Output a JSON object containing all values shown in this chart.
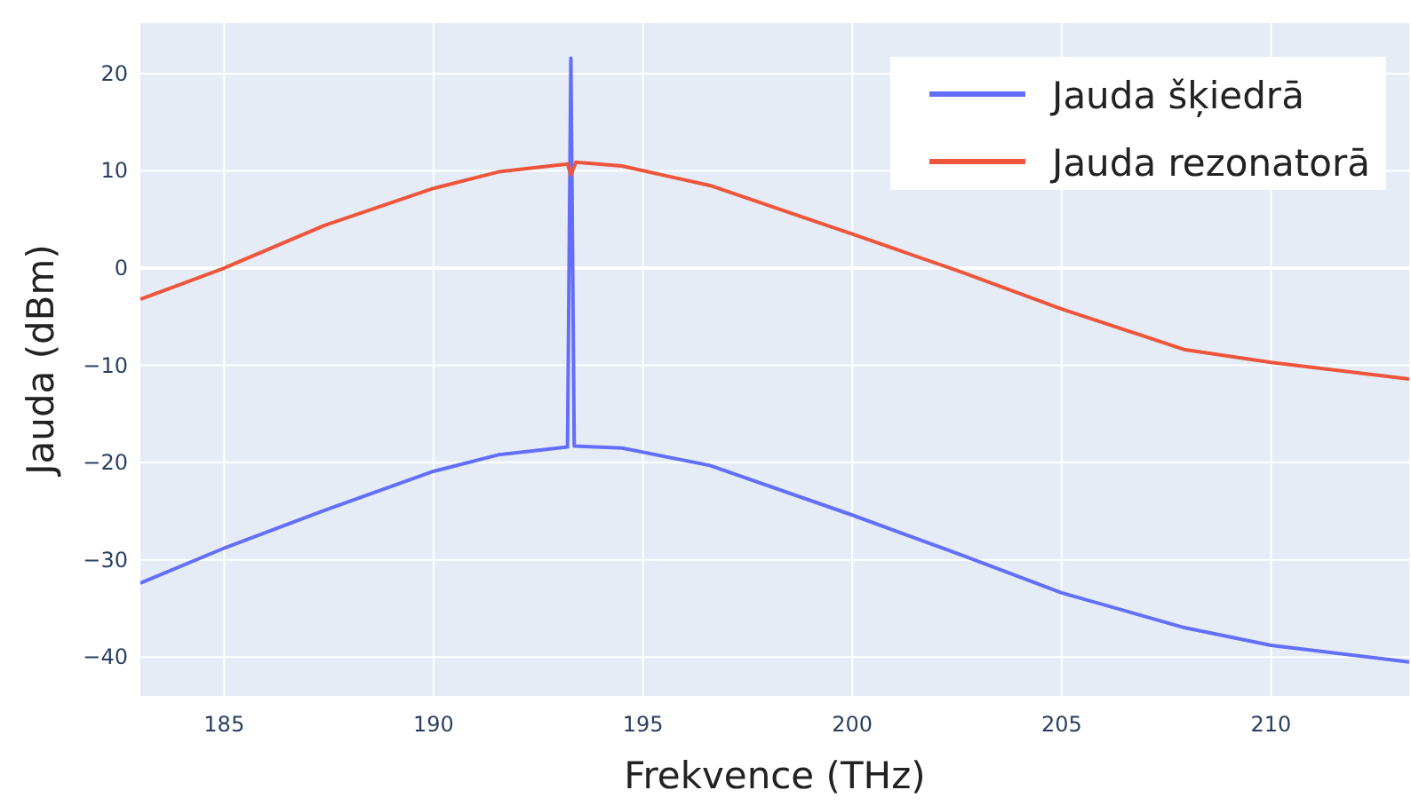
{
  "chart_data": {
    "type": "line",
    "xlabel": "Frekvence (THz)",
    "ylabel": "Jauda (dBm)",
    "xlim": [
      183,
      213.3
    ],
    "ylim": [
      -44,
      25.2
    ],
    "xticks": [
      185,
      190,
      195,
      200,
      205,
      210
    ],
    "yticks": [
      -40,
      -30,
      -20,
      -10,
      0,
      10,
      20
    ],
    "grid": true,
    "legend": "top right",
    "marker": "none",
    "line_style": "solid",
    "series": [
      {
        "name": "Jauda šķiedrā",
        "color": "#636efa",
        "x": [
          183,
          185,
          187.4,
          190,
          191.55,
          193.2,
          193.28,
          193.36,
          194.5,
          196.6,
          200,
          202.6,
          205,
          207.95,
          210,
          213.3
        ],
        "values": [
          -32.4,
          -28.8,
          -24.9,
          -20.9,
          -19.2,
          -18.4,
          21.6,
          -18.3,
          -18.5,
          -20.3,
          -25.4,
          -29.5,
          -33.4,
          -37,
          -38.8,
          -40.5
        ]
      },
      {
        "name": "Jauda rezonatorā",
        "color": "#ef553b",
        "x": [
          183,
          185,
          187.4,
          190,
          191.55,
          193.2,
          193.28,
          193.4,
          194.5,
          196.6,
          200,
          202.6,
          205,
          207.95,
          210,
          213.3
        ],
        "values": [
          -3.2,
          0,
          4.4,
          8.2,
          9.9,
          10.7,
          9.6,
          10.9,
          10.5,
          8.5,
          3.5,
          -0.4,
          -4.2,
          -8.4,
          -9.7,
          -11.4
        ]
      }
    ]
  }
}
